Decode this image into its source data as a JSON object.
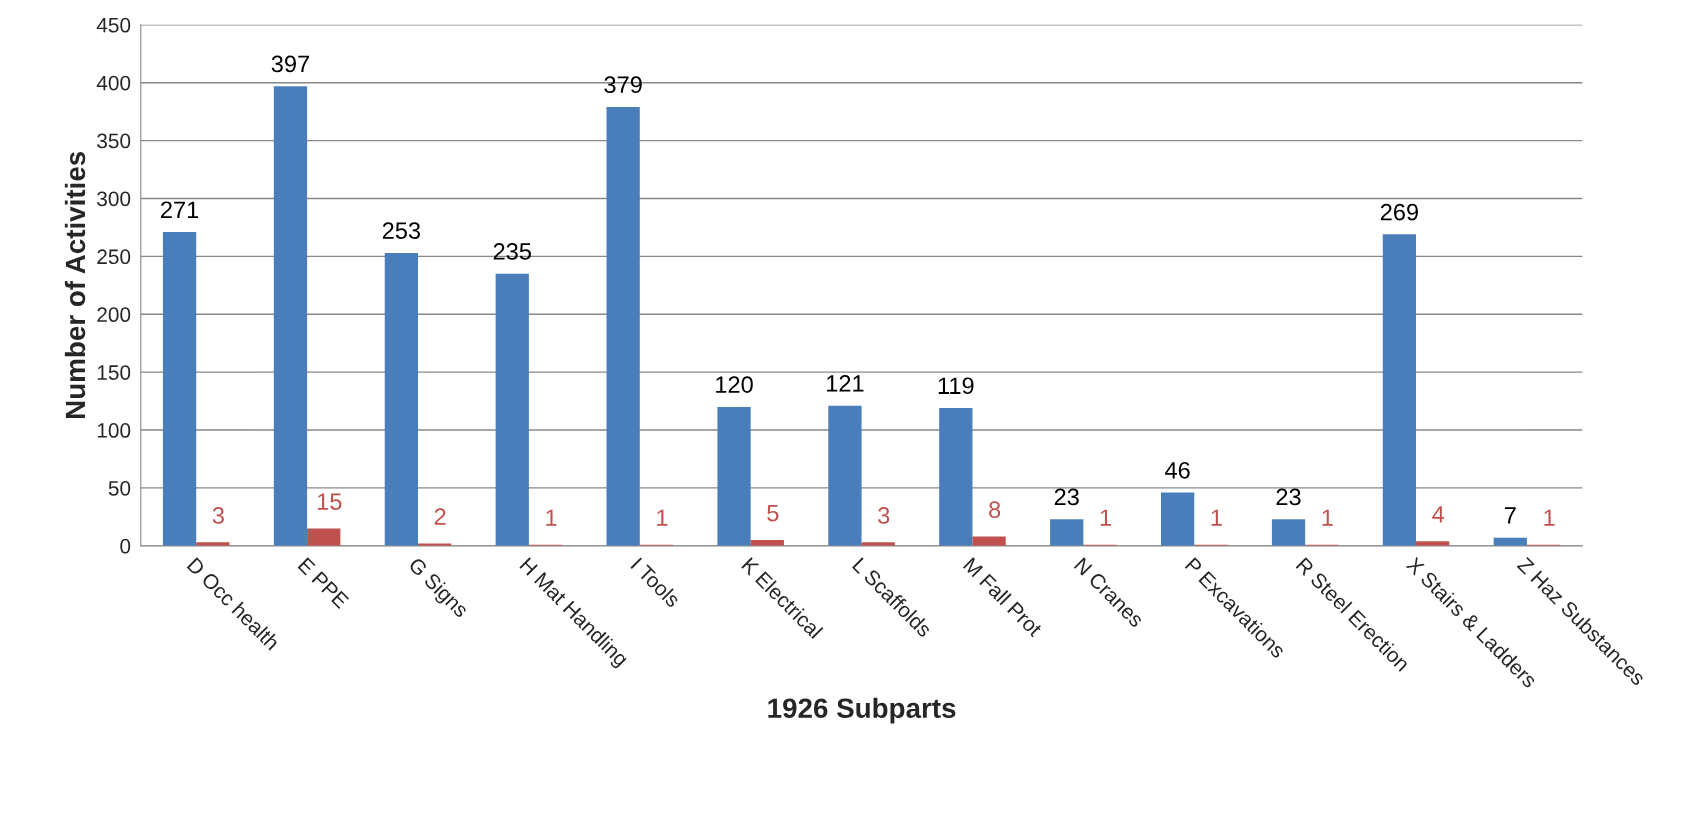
{
  "chart_data": {
    "type": "bar",
    "xlabel": "1926 Subparts",
    "ylabel": "Number of Activities",
    "categories": [
      "D Occ health",
      "E PPE",
      "G Signs",
      "H Mat Handling",
      "I Tools",
      "K Electrical",
      "L Scaffolds",
      "M Fall Prot",
      "N Cranes",
      "P Excavations",
      "R Steel Erection",
      "X Stairs & Ladders",
      "Z Haz Substances"
    ],
    "series": [
      {
        "color": "#4a7ebb",
        "values": [
          271,
          397,
          253,
          235,
          379,
          120,
          121,
          119,
          23,
          46,
          23,
          269,
          7
        ]
      },
      {
        "color": "#c0504d",
        "values": [
          3,
          15,
          2,
          1,
          1,
          5,
          3,
          8,
          1,
          1,
          1,
          4,
          1
        ]
      }
    ],
    "ylim": [
      0,
      450
    ],
    "yticks": [
      0,
      50,
      100,
      150,
      200,
      250,
      300,
      350,
      400,
      450
    ],
    "grid": "y",
    "data_labels": true,
    "legend": false
  }
}
